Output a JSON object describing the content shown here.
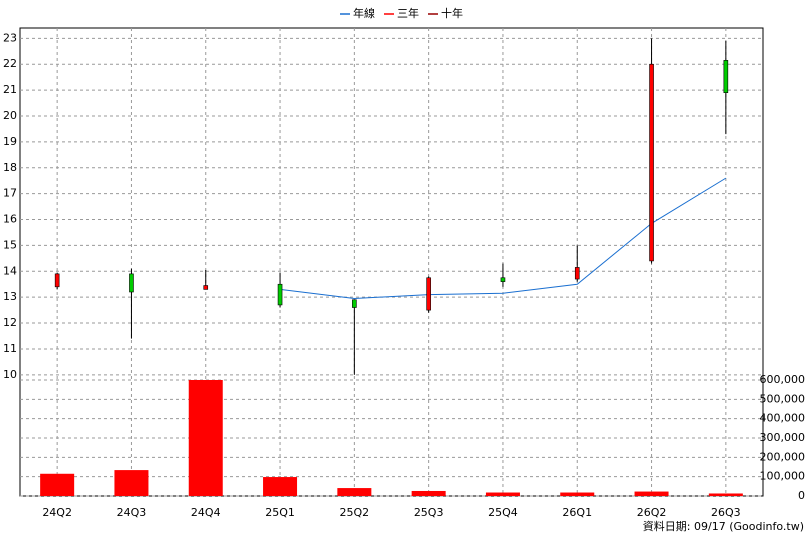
{
  "chart_data": {
    "type": "candlestick",
    "categories": [
      "24Q2",
      "24Q3",
      "24Q4",
      "25Q1",
      "25Q2",
      "25Q3",
      "25Q4",
      "26Q1",
      "26Q2",
      "26Q3"
    ],
    "ohlc": {
      "open": [
        13.4,
        13.9,
        13.3,
        13.5,
        12.9,
        12.5,
        13.75,
        13.7,
        14.4,
        22.15
      ],
      "high": [
        13.95,
        14.1,
        14.05,
        13.95,
        12.9,
        13.8,
        14.3,
        15.0,
        23.0,
        22.9
      ],
      "low": [
        13.3,
        11.4,
        13.3,
        12.6,
        10.0,
        12.4,
        13.4,
        13.6,
        14.3,
        19.3
      ],
      "close": [
        13.9,
        13.2,
        13.45,
        12.7,
        12.6,
        13.75,
        13.6,
        14.15,
        22.0,
        20.9
      ],
      "up_color": "#ff0000",
      "down_color": "#00cc00"
    },
    "series": [
      {
        "name": "年線",
        "color": "#1a6fd0",
        "values": [
          null,
          null,
          null,
          13.3,
          12.95,
          13.1,
          13.15,
          13.5,
          15.85,
          17.6
        ]
      },
      {
        "name": "三年",
        "color": "#ff0000",
        "values": [
          null,
          null,
          null,
          null,
          null,
          null,
          null,
          null,
          null,
          null
        ]
      },
      {
        "name": "十年",
        "color": "#990000",
        "values": [
          null,
          null,
          null,
          null,
          null,
          null,
          null,
          null,
          null,
          null
        ]
      }
    ],
    "volume": {
      "color": "#ff0000",
      "values": [
        115000,
        134000,
        600000,
        98000,
        41000,
        26000,
        18000,
        18000,
        23000,
        13000
      ],
      "axis": "y2"
    },
    "ylim": [
      9.8,
      23.4
    ],
    "yticks": [
      10,
      11,
      12,
      13,
      14,
      15,
      16,
      17,
      18,
      19,
      20,
      21,
      22,
      23
    ],
    "y2lim": [
      0,
      600000
    ],
    "y2ticks": [
      {
        "value": 0,
        "label": "0"
      },
      {
        "value": 100000,
        "label": "100,000"
      },
      {
        "value": 200000,
        "label": "200,000"
      },
      {
        "value": 300000,
        "label": "300,000"
      },
      {
        "value": 400000,
        "label": "400,000"
      },
      {
        "value": 500000,
        "label": "500,000"
      },
      {
        "value": 600000,
        "label": "600,000"
      }
    ],
    "grid": true,
    "footer": "資料日期: 09/17  (Goodinfo.tw)"
  }
}
